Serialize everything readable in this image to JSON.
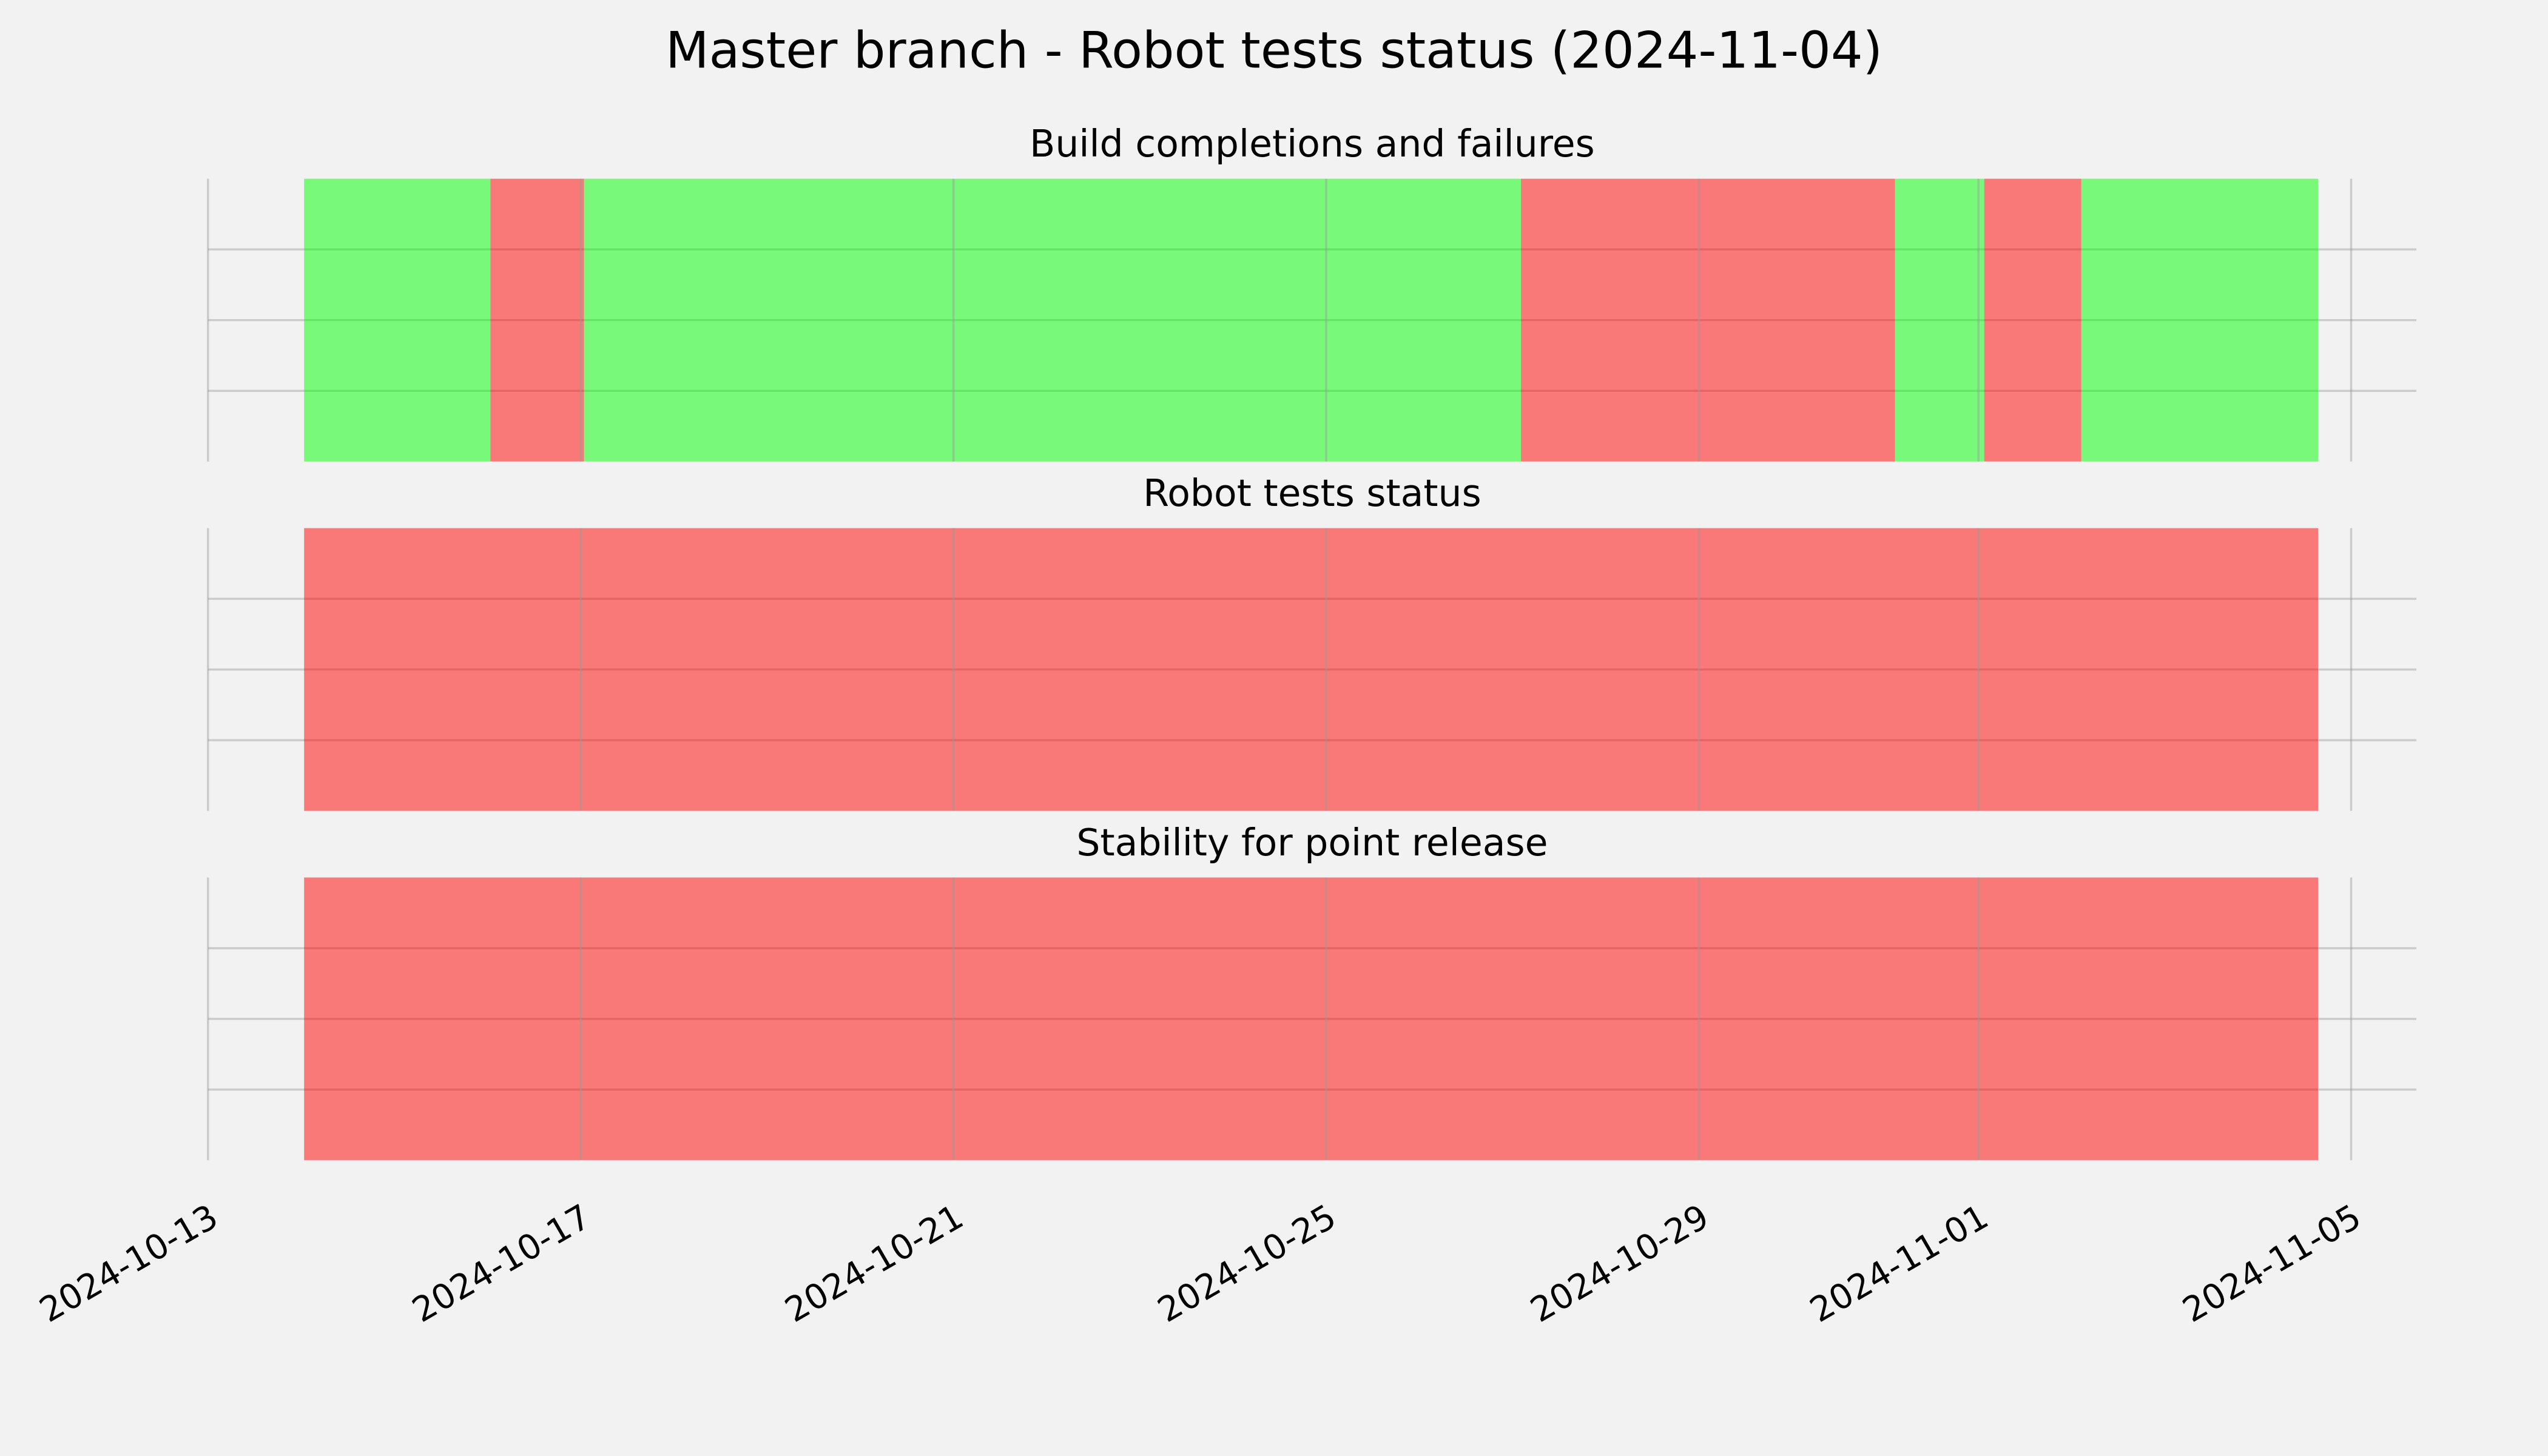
{
  "chart_data": {
    "type": "timeline",
    "title": "Master branch - Robot tests status (2024-11-04)",
    "xlim": [
      "2024-10-13T00:00",
      "2024-11-05T16:48"
    ],
    "xticks": [
      "2024-10-13",
      "2024-10-17",
      "2024-10-21",
      "2024-10-25",
      "2024-10-29",
      "2024-11-01",
      "2024-11-05"
    ],
    "ylim": [
      0,
      1
    ],
    "yticks": [
      0.25,
      0.5,
      0.75
    ],
    "grid": true,
    "alpha": 0.5,
    "panels": [
      {
        "title": "Build completions and failures",
        "spans": [
          {
            "start": "2024-10-14T00:45",
            "end": "2024-10-16T00:45",
            "color": "#00ff00"
          },
          {
            "start": "2024-10-16T00:45",
            "end": "2024-10-17T00:50",
            "color": "#ff0000"
          },
          {
            "start": "2024-10-17T00:50",
            "end": "2024-10-27T02:10",
            "color": "#00ff00"
          },
          {
            "start": "2024-10-27T02:10",
            "end": "2024-10-31T02:30",
            "color": "#ff0000"
          },
          {
            "start": "2024-10-31T02:30",
            "end": "2024-11-01T01:30",
            "color": "#00ff00"
          },
          {
            "start": "2024-11-01T01:30",
            "end": "2024-11-02T02:30",
            "color": "#ff0000"
          },
          {
            "start": "2024-11-02T02:30",
            "end": "2024-11-04T15:30",
            "color": "#00ff00"
          }
        ]
      },
      {
        "title": "Robot tests status",
        "spans": [
          {
            "start": "2024-10-14T00:45",
            "end": "2024-11-04T15:30",
            "color": "#ff0000"
          }
        ]
      },
      {
        "title": "Stability for point release",
        "spans": [
          {
            "start": "2024-10-14T00:45",
            "end": "2024-11-04T15:30",
            "color": "#ff0000"
          }
        ]
      }
    ]
  }
}
